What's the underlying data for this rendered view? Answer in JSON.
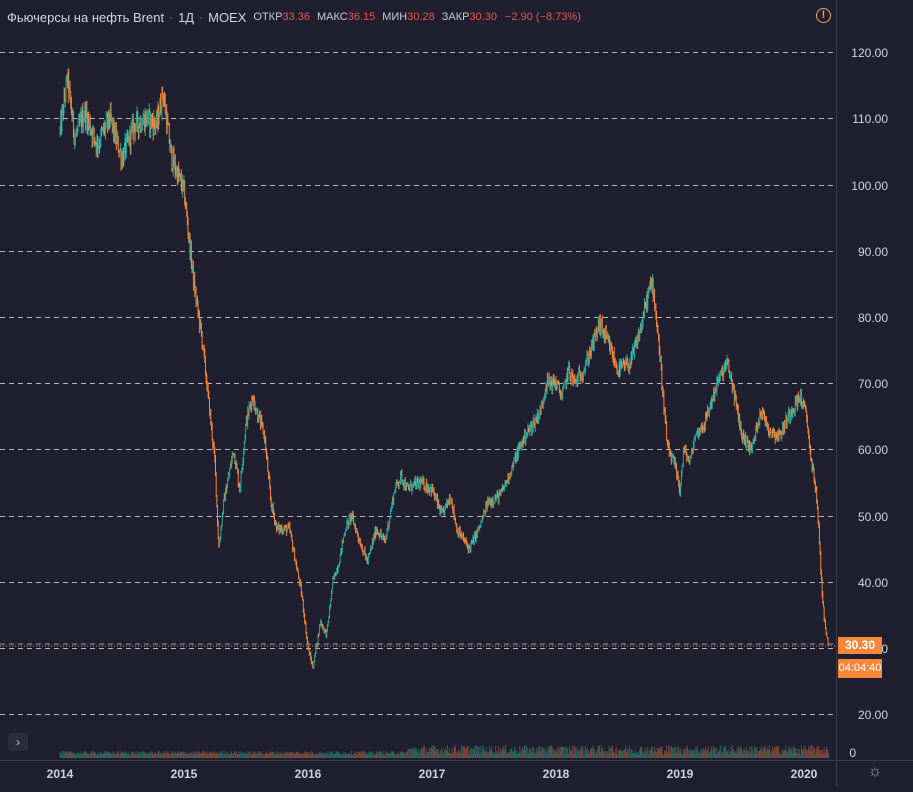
{
  "header": {
    "title": "Фьючерсы на нефть Brent",
    "interval": "1Д",
    "exchange": "MOEX",
    "open_label": "ОТКР",
    "open_value": "33.36",
    "high_label": "МАКС",
    "high_value": "36.15",
    "low_label": "МИН",
    "low_value": "30.28",
    "close_label": "ЗАКР",
    "close_value": "30.30",
    "change": "−2.90 (−8.73%)"
  },
  "last_price_label": "30.30",
  "countdown_label": "04:04:40",
  "expand_label": "›",
  "colors": {
    "background": "#1f1f30",
    "up": "#26a69a",
    "down": "#f7873b",
    "grid": "#d0d0d0",
    "axis_text": "#d1d4dc",
    "badge": "#f7873b"
  },
  "chart_data": {
    "type": "candlestick",
    "title": "Фьючерсы на нефть Brent",
    "xlabel": "",
    "ylabel": "",
    "y_ticks": [
      "120.00",
      "110.00",
      "100.00",
      "90.00",
      "80.00",
      "70.00",
      "60.00",
      "50.00",
      "40.00",
      "30.00",
      "20.00"
    ],
    "y_tick_values": [
      120,
      110,
      100,
      90,
      80,
      70,
      60,
      50,
      40,
      30,
      20
    ],
    "ylim": [
      15.6,
      124.4
    ],
    "x_ticks": [
      "2014",
      "2015",
      "2016",
      "2017",
      "2018",
      "2019",
      "2020"
    ],
    "x_tick_values": [
      2013.0,
      2014.0,
      2015.0,
      2016.0,
      2017.0,
      2018.0,
      2019.0
    ],
    "xlim": [
      2013.0,
      2019.2
    ],
    "grid": "horizontal dashed",
    "last_price": 30.3,
    "volume_axis_label": "0",
    "series": [
      {
        "price_path": [
          [
            2013.0,
            108
          ],
          [
            2013.06,
            116
          ],
          [
            2013.12,
            107
          ],
          [
            2013.2,
            111
          ],
          [
            2013.3,
            106
          ],
          [
            2013.4,
            110
          ],
          [
            2013.5,
            104
          ],
          [
            2013.6,
            109
          ],
          [
            2013.7,
            110
          ],
          [
            2013.78,
            109
          ],
          [
            2013.83,
            114
          ],
          [
            2013.9,
            104
          ],
          [
            2014.0,
            99
          ],
          [
            2014.08,
            85
          ],
          [
            2014.15,
            76
          ],
          [
            2014.25,
            58
          ],
          [
            2014.28,
            45
          ],
          [
            2014.32,
            52
          ],
          [
            2014.4,
            60
          ],
          [
            2014.45,
            54
          ],
          [
            2014.5,
            64
          ],
          [
            2014.55,
            68
          ],
          [
            2014.65,
            62
          ],
          [
            2014.7,
            52
          ],
          [
            2014.75,
            48
          ],
          [
            2014.85,
            48
          ],
          [
            2014.9,
            43
          ],
          [
            2014.95,
            38
          ],
          [
            2015.0,
            30
          ],
          [
            2015.04,
            27
          ],
          [
            2015.1,
            34
          ],
          [
            2015.15,
            32
          ],
          [
            2015.2,
            40
          ],
          [
            2015.25,
            43
          ],
          [
            2015.3,
            48
          ],
          [
            2015.35,
            50
          ],
          [
            2015.42,
            46
          ],
          [
            2015.48,
            43
          ],
          [
            2015.55,
            48
          ],
          [
            2015.62,
            46
          ],
          [
            2015.7,
            54
          ],
          [
            2015.75,
            56
          ],
          [
            2015.8,
            54
          ],
          [
            2015.9,
            55
          ],
          [
            2016.0,
            54
          ],
          [
            2016.08,
            50
          ],
          [
            2016.15,
            53
          ],
          [
            2016.2,
            48
          ],
          [
            2016.3,
            45
          ],
          [
            2016.38,
            48
          ],
          [
            2016.45,
            52
          ],
          [
            2016.55,
            53
          ],
          [
            2016.62,
            56
          ],
          [
            2016.7,
            60
          ],
          [
            2016.75,
            62
          ],
          [
            2016.82,
            64
          ],
          [
            2016.88,
            66
          ],
          [
            2016.92,
            70
          ],
          [
            2017.0,
            70
          ],
          [
            2017.05,
            68
          ],
          [
            2017.1,
            72
          ],
          [
            2017.15,
            70
          ],
          [
            2017.22,
            72
          ],
          [
            2017.3,
            76
          ],
          [
            2017.35,
            79
          ],
          [
            2017.42,
            76
          ],
          [
            2017.5,
            72
          ],
          [
            2017.6,
            73
          ],
          [
            2017.68,
            78
          ],
          [
            2017.75,
            84
          ],
          [
            2017.78,
            85
          ],
          [
            2017.82,
            78
          ],
          [
            2017.9,
            60
          ],
          [
            2017.95,
            58
          ],
          [
            2018.0,
            54
          ],
          [
            2018.03,
            60
          ],
          [
            2018.08,
            58
          ],
          [
            2018.12,
            62
          ],
          [
            2018.2,
            64
          ],
          [
            2018.3,
            70
          ],
          [
            2018.38,
            73
          ],
          [
            2018.42,
            70
          ],
          [
            2018.5,
            62
          ],
          [
            2018.58,
            60
          ],
          [
            2018.65,
            66
          ],
          [
            2018.72,
            63
          ],
          [
            2018.8,
            62
          ],
          [
            2018.9,
            66
          ],
          [
            2018.97,
            68
          ],
          [
            2019.02,
            65
          ],
          [
            2019.06,
            58
          ],
          [
            2019.09,
            55
          ],
          [
            2019.12,
            48
          ],
          [
            2019.14,
            40
          ],
          [
            2019.17,
            33
          ],
          [
            2019.2,
            30.3
          ]
        ]
      }
    ]
  }
}
